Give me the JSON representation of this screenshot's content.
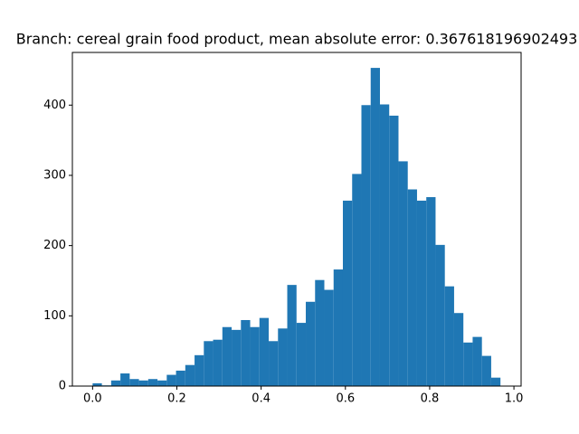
{
  "chart_data": {
    "type": "histogram",
    "title": "Branch: cereal grain food product, mean absolute error: 0.367618196902493",
    "bins": [
      0,
      0.022,
      0.044,
      0.066,
      0.088,
      0.11,
      0.132,
      0.154,
      0.176,
      0.198,
      0.22,
      0.242,
      0.264,
      0.286,
      0.308,
      0.33,
      0.352,
      0.374,
      0.396,
      0.418,
      0.44,
      0.462,
      0.484,
      0.506,
      0.528,
      0.55,
      0.572,
      0.594,
      0.616,
      0.638,
      0.66,
      0.682,
      0.704,
      0.726,
      0.748,
      0.77,
      0.792,
      0.814,
      0.836,
      0.858,
      0.88,
      0.902,
      0.924,
      0.946,
      0.968
    ],
    "values": [
      4,
      1,
      8,
      18,
      10,
      8,
      10,
      8,
      16,
      22,
      30,
      44,
      64,
      66,
      84,
      80,
      94,
      84,
      97,
      64,
      82,
      144,
      90,
      120,
      151,
      137,
      166,
      264,
      302,
      400,
      453,
      401,
      385,
      320,
      280,
      264,
      269,
      201,
      142,
      104,
      62,
      70,
      43,
      12
    ],
    "color": "#1f77b4",
    "xlim": [
      -0.048,
      1.017
    ],
    "xticks": [
      {
        "value": 0,
        "label": "0.0"
      },
      0.2,
      0.4,
      0.6,
      0.8,
      {
        "value": 1,
        "label": "1.0"
      }
    ],
    "ylim": [
      0,
      475
    ],
    "yticks": [
      0,
      100,
      200,
      300,
      400
    ],
    "grid": false
  }
}
